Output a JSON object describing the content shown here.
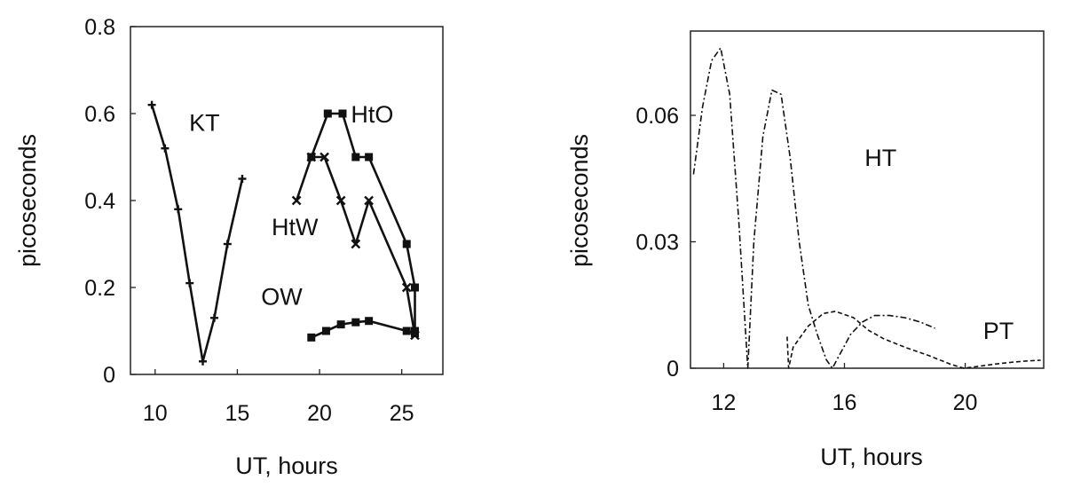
{
  "chart_data": [
    {
      "type": "line",
      "xlabel": "UT, hours",
      "ylabel": "picoseconds",
      "xlim": [
        8.5,
        27.5
      ],
      "ylim": [
        0,
        0.8
      ],
      "xticks": [
        10,
        15,
        20,
        25
      ],
      "yticks": [
        0,
        0.2,
        0.4,
        0.6,
        0.8
      ],
      "ytick_labels": [
        "0",
        "0.2",
        "0.4",
        "0.6",
        "0.8"
      ],
      "grid": false,
      "series": [
        {
          "name": "KT",
          "marker": "plus",
          "x": [
            9.8,
            10.6,
            11.4,
            12.1,
            12.9,
            13.6,
            14.4,
            15.3
          ],
          "values": [
            0.62,
            0.52,
            0.38,
            0.21,
            0.03,
            0.13,
            0.3,
            0.45
          ]
        },
        {
          "name": "HtO",
          "marker": "square",
          "x": [
            19.5,
            20.5,
            21.4,
            22.2,
            23.0,
            25.3,
            25.8,
            25.8
          ],
          "values": [
            0.5,
            0.6,
            0.6,
            0.5,
            0.5,
            0.3,
            0.2,
            0.1
          ]
        },
        {
          "name": "HtW",
          "marker": "x",
          "x": [
            18.6,
            19.5,
            20.3,
            21.3,
            22.2,
            23.0,
            25.3,
            25.8
          ],
          "values": [
            0.4,
            0.5,
            0.5,
            0.4,
            0.3,
            0.4,
            0.2,
            0.09
          ]
        },
        {
          "name": "OW",
          "marker": "square",
          "x": [
            19.5,
            20.4,
            21.3,
            22.2,
            23.0,
            25.3,
            25.8
          ],
          "values": [
            0.085,
            0.1,
            0.115,
            0.12,
            0.123,
            0.1,
            0.095
          ]
        }
      ],
      "annotations": [
        {
          "text": "KT",
          "x": 13.0,
          "y": 0.56
        },
        {
          "text": "HtO",
          "x": 23.2,
          "y": 0.58
        },
        {
          "text": "HtW",
          "x": 18.5,
          "y": 0.32
        },
        {
          "text": "OW",
          "x": 17.7,
          "y": 0.16
        }
      ]
    },
    {
      "type": "line",
      "xlabel": "UT, hours",
      "ylabel": "picoseconds",
      "xlim": [
        10.9,
        22.6
      ],
      "ylim": [
        0,
        0.08
      ],
      "xticks": [
        12,
        16,
        20
      ],
      "yticks": [
        0,
        0.03,
        0.06
      ],
      "ytick_labels": [
        "0",
        "0.03",
        "0.06"
      ],
      "grid": false,
      "series": [
        {
          "name": "HT",
          "style": "dash-dot",
          "x": [
            11.0,
            11.3,
            11.6,
            11.9,
            12.2,
            12.5,
            12.8,
            13.0,
            13.3,
            13.6,
            13.9,
            14.2,
            14.5,
            14.8,
            15.1,
            15.4,
            15.6,
            15.9,
            16.2,
            16.6,
            17.0,
            17.5,
            18.0,
            18.5,
            19.0
          ],
          "values": [
            0.046,
            0.062,
            0.073,
            0.076,
            0.065,
            0.035,
            0.0,
            0.03,
            0.055,
            0.066,
            0.065,
            0.05,
            0.03,
            0.015,
            0.008,
            0.002,
            0.0,
            0.004,
            0.008,
            0.011,
            0.0125,
            0.0125,
            0.012,
            0.011,
            0.0095
          ]
        },
        {
          "name": "PT",
          "style": "dashed",
          "x": [
            14.1,
            14.15,
            14.3,
            14.8,
            15.3,
            15.7,
            16.3,
            16.8,
            17.3,
            18.0,
            18.8,
            19.5,
            19.95,
            20.5,
            21.0,
            21.5,
            22.0,
            22.5
          ],
          "values": [
            0.0075,
            0.0,
            0.005,
            0.01,
            0.013,
            0.0135,
            0.012,
            0.009,
            0.007,
            0.005,
            0.003,
            0.001,
            0.0,
            0.0005,
            0.001,
            0.0014,
            0.0017,
            0.0019
          ]
        }
      ],
      "annotations": [
        {
          "text": "HT",
          "x": 17.2,
          "y": 0.048
        },
        {
          "text": "PT",
          "x": 21.1,
          "y": 0.007
        }
      ]
    }
  ]
}
